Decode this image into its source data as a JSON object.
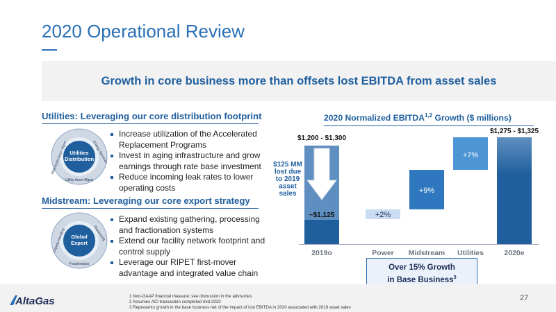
{
  "title": "2020 Operational Review",
  "banner": "Growth in core business more than offsets lost EBITDA from asset sales",
  "utilities": {
    "heading": "Utilities: Leveraging our core distribution footprint",
    "ring_center": [
      "Utilities",
      "Distribution"
    ],
    "ring_labels": [
      "Midstream Asset Mgmt",
      "Energy Services",
      "Utility Asset Mgmt"
    ],
    "bullets": [
      "Increase utilization of the Accelerated Replacement Programs",
      "Invest in aging infrastructure and grow earnings through rate base investment",
      "Reduce incoming leak rates to lower operating costs"
    ]
  },
  "midstream": {
    "heading": "Midstream: Leveraging our core export strategy",
    "ring_center": [
      "Global",
      "Export"
    ],
    "ring_labels": [
      "Liquids Handling",
      "Processing",
      "Fractionation"
    ],
    "bullets": [
      "Expand existing gathering, processing and fractionation systems",
      "Extend our facility network footprint and control supply",
      "Leverage our RIPET first-mover advantage and integrated value chain"
    ]
  },
  "chart_title": "2020 Normalized EBITDA",
  "chart_title_sup": "1,2",
  "chart_title_suffix": " Growth ($ millions)",
  "chart_data": {
    "type": "bar",
    "subtype": "waterfall",
    "categories": [
      "2019o",
      "Power",
      "Midstream",
      "Utilities",
      "2020e"
    ],
    "bars": [
      {
        "category": "2019o",
        "range_label": "$1,200 - $1,300",
        "base_label": "~$1,125",
        "high": 1300,
        "adjusted": 1125
      },
      {
        "category": "Power",
        "label": "+2%",
        "change_pct": 2
      },
      {
        "category": "Midstream",
        "label": "+9%",
        "change_pct": 9
      },
      {
        "category": "Utilities",
        "label": "+7%",
        "change_pct": 7
      },
      {
        "category": "2020e",
        "range_label": "$1,275 - $1,325",
        "high": 1325
      }
    ],
    "annotation": "$125 MM lost due to 2019 asset sales",
    "colors": {
      "dark": "#1f5f9e",
      "mid": "#2f78bf",
      "light": "#4e95d6",
      "pale": "#c9dcf2",
      "faded": "#5f8fc0"
    }
  },
  "callout": [
    "Over 15% Growth",
    "in Base Business"
  ],
  "callout_sup": "3",
  "logo": "AltaGas",
  "footnotes": [
    "1 Non-GAAP financial measure; see discussion in the advisories",
    "2 Assumes ACI transaction completed mid-2020",
    "3 Represents growth in the base business net of the impact of lost EBITDA in 2020 associated with 2019 asset sales"
  ],
  "page_number": "27"
}
